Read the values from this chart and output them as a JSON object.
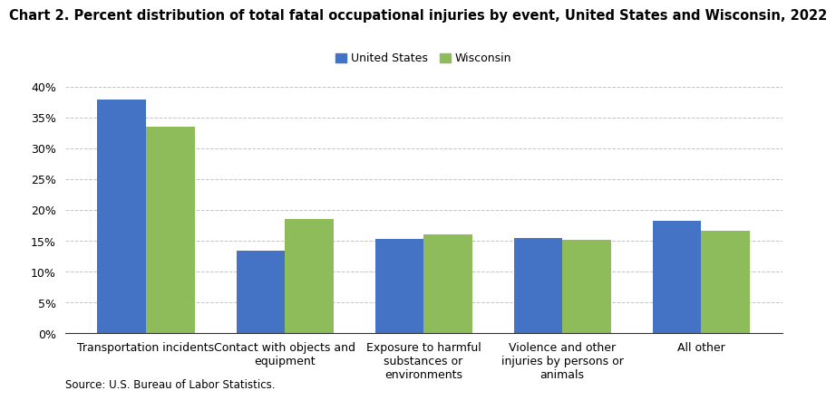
{
  "title": "Chart 2. Percent distribution of total fatal occupational injuries by event, United States and Wisconsin, 2022",
  "categories": [
    "Transportation incidents",
    "Contact with objects and\nequipment",
    "Exposure to harmful\nsubstances or\nenvironments",
    "Violence and other\ninjuries by persons or\nanimals",
    "All other"
  ],
  "us_values": [
    38.0,
    13.5,
    15.3,
    15.5,
    18.3
  ],
  "wi_values": [
    33.5,
    18.5,
    16.0,
    15.2,
    16.7
  ],
  "us_color": "#4472C4",
  "wi_color": "#8FBC5A",
  "ylim": [
    0,
    40
  ],
  "yticks": [
    0,
    5,
    10,
    15,
    20,
    25,
    30,
    35,
    40
  ],
  "ytick_labels": [
    "0%",
    "5%",
    "10%",
    "15%",
    "20%",
    "25%",
    "30%",
    "35%",
    "40%"
  ],
  "legend_labels": [
    "United States",
    "Wisconsin"
  ],
  "source_text": "Source: U.S. Bureau of Labor Statistics.",
  "bar_width": 0.35,
  "title_fontsize": 10.5,
  "axis_fontsize": 9,
  "legend_fontsize": 9,
  "source_fontsize": 8.5
}
